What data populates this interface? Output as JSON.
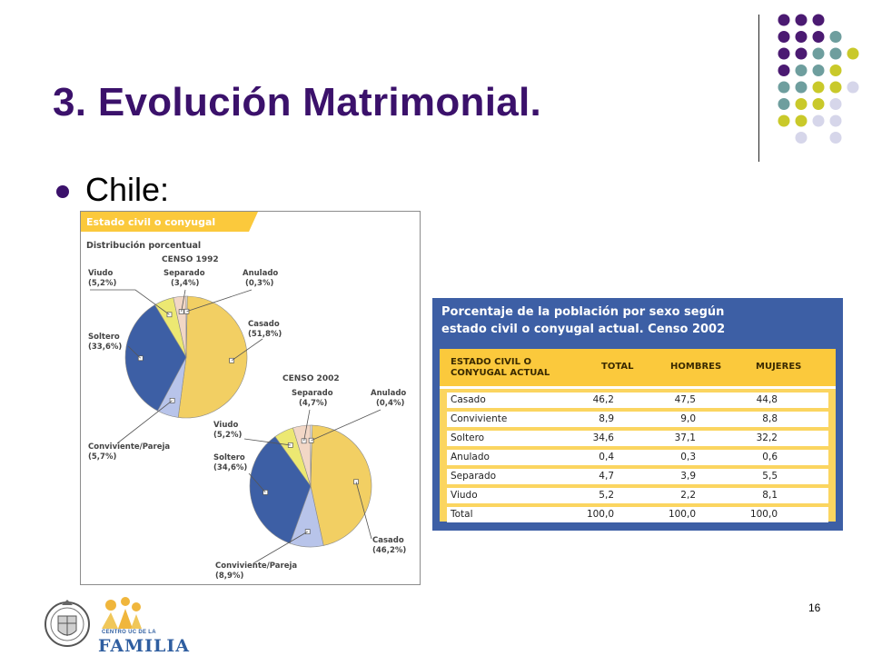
{
  "slide": {
    "title": "3. Evolución Matrimonial.",
    "bullet": "Chile:",
    "page_number": "16",
    "logo_text_small": "CENTRO UC DE LA",
    "logo_text_big": "FAMILIA"
  },
  "colors": {
    "title": "#3b116b",
    "casado": "#f2cf63",
    "soltero": "#3d5fa5",
    "conviviente": "#b8c4ea",
    "viudo": "#ece872",
    "separado": "#f2d7c6",
    "anulado": "#ffffff",
    "table_bg": "#3d5fa5",
    "table_header": "#fbc93c",
    "dot_purple": "#4b1a72",
    "dot_teal": "#6e9e9e",
    "dot_olive": "#c9c92a",
    "dot_lavender": "#d6d6ea"
  },
  "figure_pies": {
    "header": "Estado civil o conyugal",
    "subheader": "Distribución porcentual"
  },
  "chart_data": [
    {
      "type": "pie",
      "title": "CENSO 1992",
      "categories": [
        "Casado",
        "Conviviente/Pareja",
        "Soltero",
        "Viudo",
        "Separado",
        "Anulado"
      ],
      "values": [
        51.8,
        5.7,
        33.6,
        5.2,
        3.4,
        0.3
      ],
      "labels": {
        "casado": "Casado",
        "casado_pct": "(51,8%)",
        "conviviente": "Conviviente/Pareja",
        "conviviente_pct": "(5,7%)",
        "soltero": "Soltero",
        "soltero_pct": "(33,6%)",
        "viudo": "Viudo",
        "viudo_pct": "(5,2%)",
        "separado": "Separado",
        "separado_pct": "(3,4%)",
        "anulado": "Anulado",
        "anulado_pct": "(0,3%)"
      }
    },
    {
      "type": "pie",
      "title": "CENSO 2002",
      "categories": [
        "Casado",
        "Conviviente/Pareja",
        "Soltero",
        "Viudo",
        "Separado",
        "Anulado"
      ],
      "values": [
        46.2,
        8.9,
        34.6,
        5.2,
        4.7,
        0.4
      ],
      "labels": {
        "casado": "Casado",
        "casado_pct": "(46,2%)",
        "conviviente": "Conviviente/Pareja",
        "conviviente_pct": "(8,9%)",
        "soltero": "Soltero",
        "soltero_pct": "(34,6%)",
        "viudo": "Viudo",
        "viudo_pct": "(5,2%)",
        "separado": "Separado",
        "separado_pct": "(4,7%)",
        "anulado": "Anulado",
        "anulado_pct": "(0,4%)"
      }
    },
    {
      "type": "table",
      "title_line1": "Porcentaje de la población por sexo según",
      "title_line2": "estado civil o conyugal actual. Censo 2002",
      "header_line1": "ESTADO CIVIL O",
      "header_line2": "CONYUGAL ACTUAL",
      "columns": [
        "TOTAL",
        "HOMBRES",
        "MUJERES"
      ],
      "rows": [
        {
          "label": "Casado",
          "total": "46,2",
          "hombres": "47,5",
          "mujeres": "44,8"
        },
        {
          "label": "Conviviente",
          "total": "8,9",
          "hombres": "9,0",
          "mujeres": "8,8"
        },
        {
          "label": "Soltero",
          "total": "34,6",
          "hombres": "37,1",
          "mujeres": "32,2"
        },
        {
          "label": "Anulado",
          "total": "0,4",
          "hombres": "0,3",
          "mujeres": "0,6"
        },
        {
          "label": "Separado",
          "total": "4,7",
          "hombres": "3,9",
          "mujeres": "5,5"
        },
        {
          "label": "Viudo",
          "total": "5,2",
          "hombres": "2,2",
          "mujeres": "8,1"
        },
        {
          "label": "Total",
          "total": "100,0",
          "hombres": "100,0",
          "mujeres": "100,0"
        }
      ]
    }
  ]
}
